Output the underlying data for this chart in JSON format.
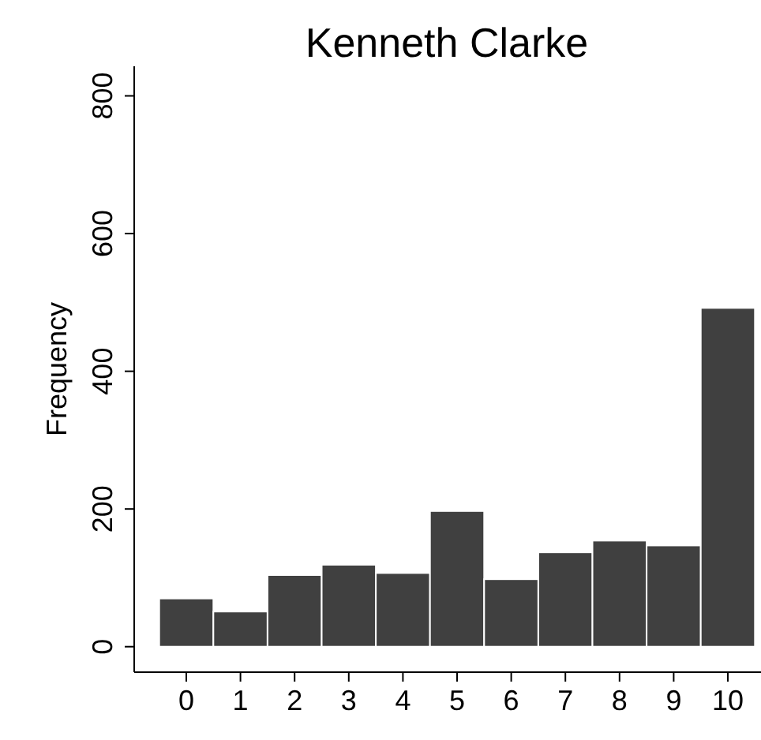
{
  "chart_data": {
    "type": "bar",
    "title": "Kenneth Clarke",
    "ylabel": "Frequency",
    "categories": [
      "0",
      "1",
      "2",
      "3",
      "4",
      "5",
      "6",
      "7",
      "8",
      "9",
      "10"
    ],
    "values": [
      70,
      51,
      104,
      119,
      107,
      197,
      98,
      137,
      154,
      147,
      492
    ],
    "color": "#404040",
    "ylim": [
      -37,
      843
    ],
    "yticks": [
      0,
      200,
      400,
      600,
      800
    ],
    "grid": false
  }
}
